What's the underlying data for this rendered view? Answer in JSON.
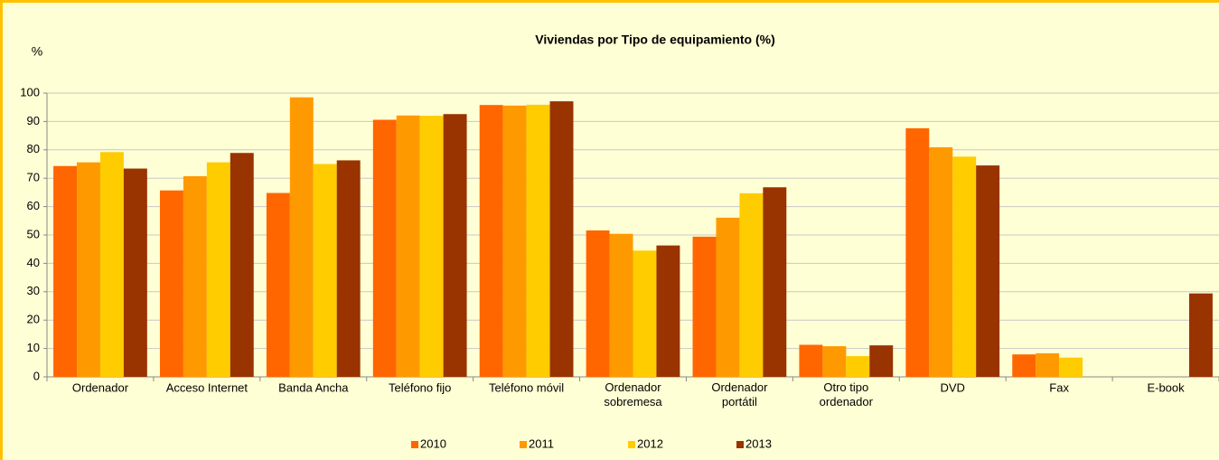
{
  "chart_data": {
    "type": "bar",
    "title": "Viviendas por Tipo de equipamiento (%)",
    "y_label": "%",
    "categories": [
      "Ordenador",
      "Acceso Internet",
      "Banda Ancha",
      "Teléfono fijo",
      "Teléfono móvil",
      "Ordenador\nsobremesa",
      "Ordenador\nportátil",
      "Otro tipo\nordenador",
      "DVD",
      "Fax",
      "E-book"
    ],
    "series": [
      {
        "name": "2010",
        "color": "#FF6600",
        "values": [
          74.3,
          65.7,
          64.8,
          90.6,
          95.8,
          51.6,
          49.4,
          11.3,
          87.6,
          7.9,
          null
        ]
      },
      {
        "name": "2011",
        "color": "#FF9900",
        "values": [
          75.6,
          70.7,
          98.5,
          92.1,
          95.6,
          50.4,
          56.1,
          10.8,
          80.9,
          8.3,
          null
        ]
      },
      {
        "name": "2012",
        "color": "#FFCC00",
        "values": [
          79.2,
          75.6,
          75.0,
          92.0,
          95.9,
          44.5,
          64.7,
          7.3,
          77.6,
          6.8,
          null
        ]
      },
      {
        "name": "2013",
        "color": "#993300",
        "values": [
          73.4,
          78.9,
          76.3,
          92.6,
          97.1,
          46.3,
          66.8,
          11.1,
          74.5,
          null,
          29.4
        ]
      }
    ],
    "ylim": [
      0,
      100
    ],
    "yticks": [
      0,
      10,
      20,
      30,
      40,
      50,
      60,
      70,
      80,
      90,
      100
    ],
    "grid": true,
    "legend": "bottom"
  }
}
